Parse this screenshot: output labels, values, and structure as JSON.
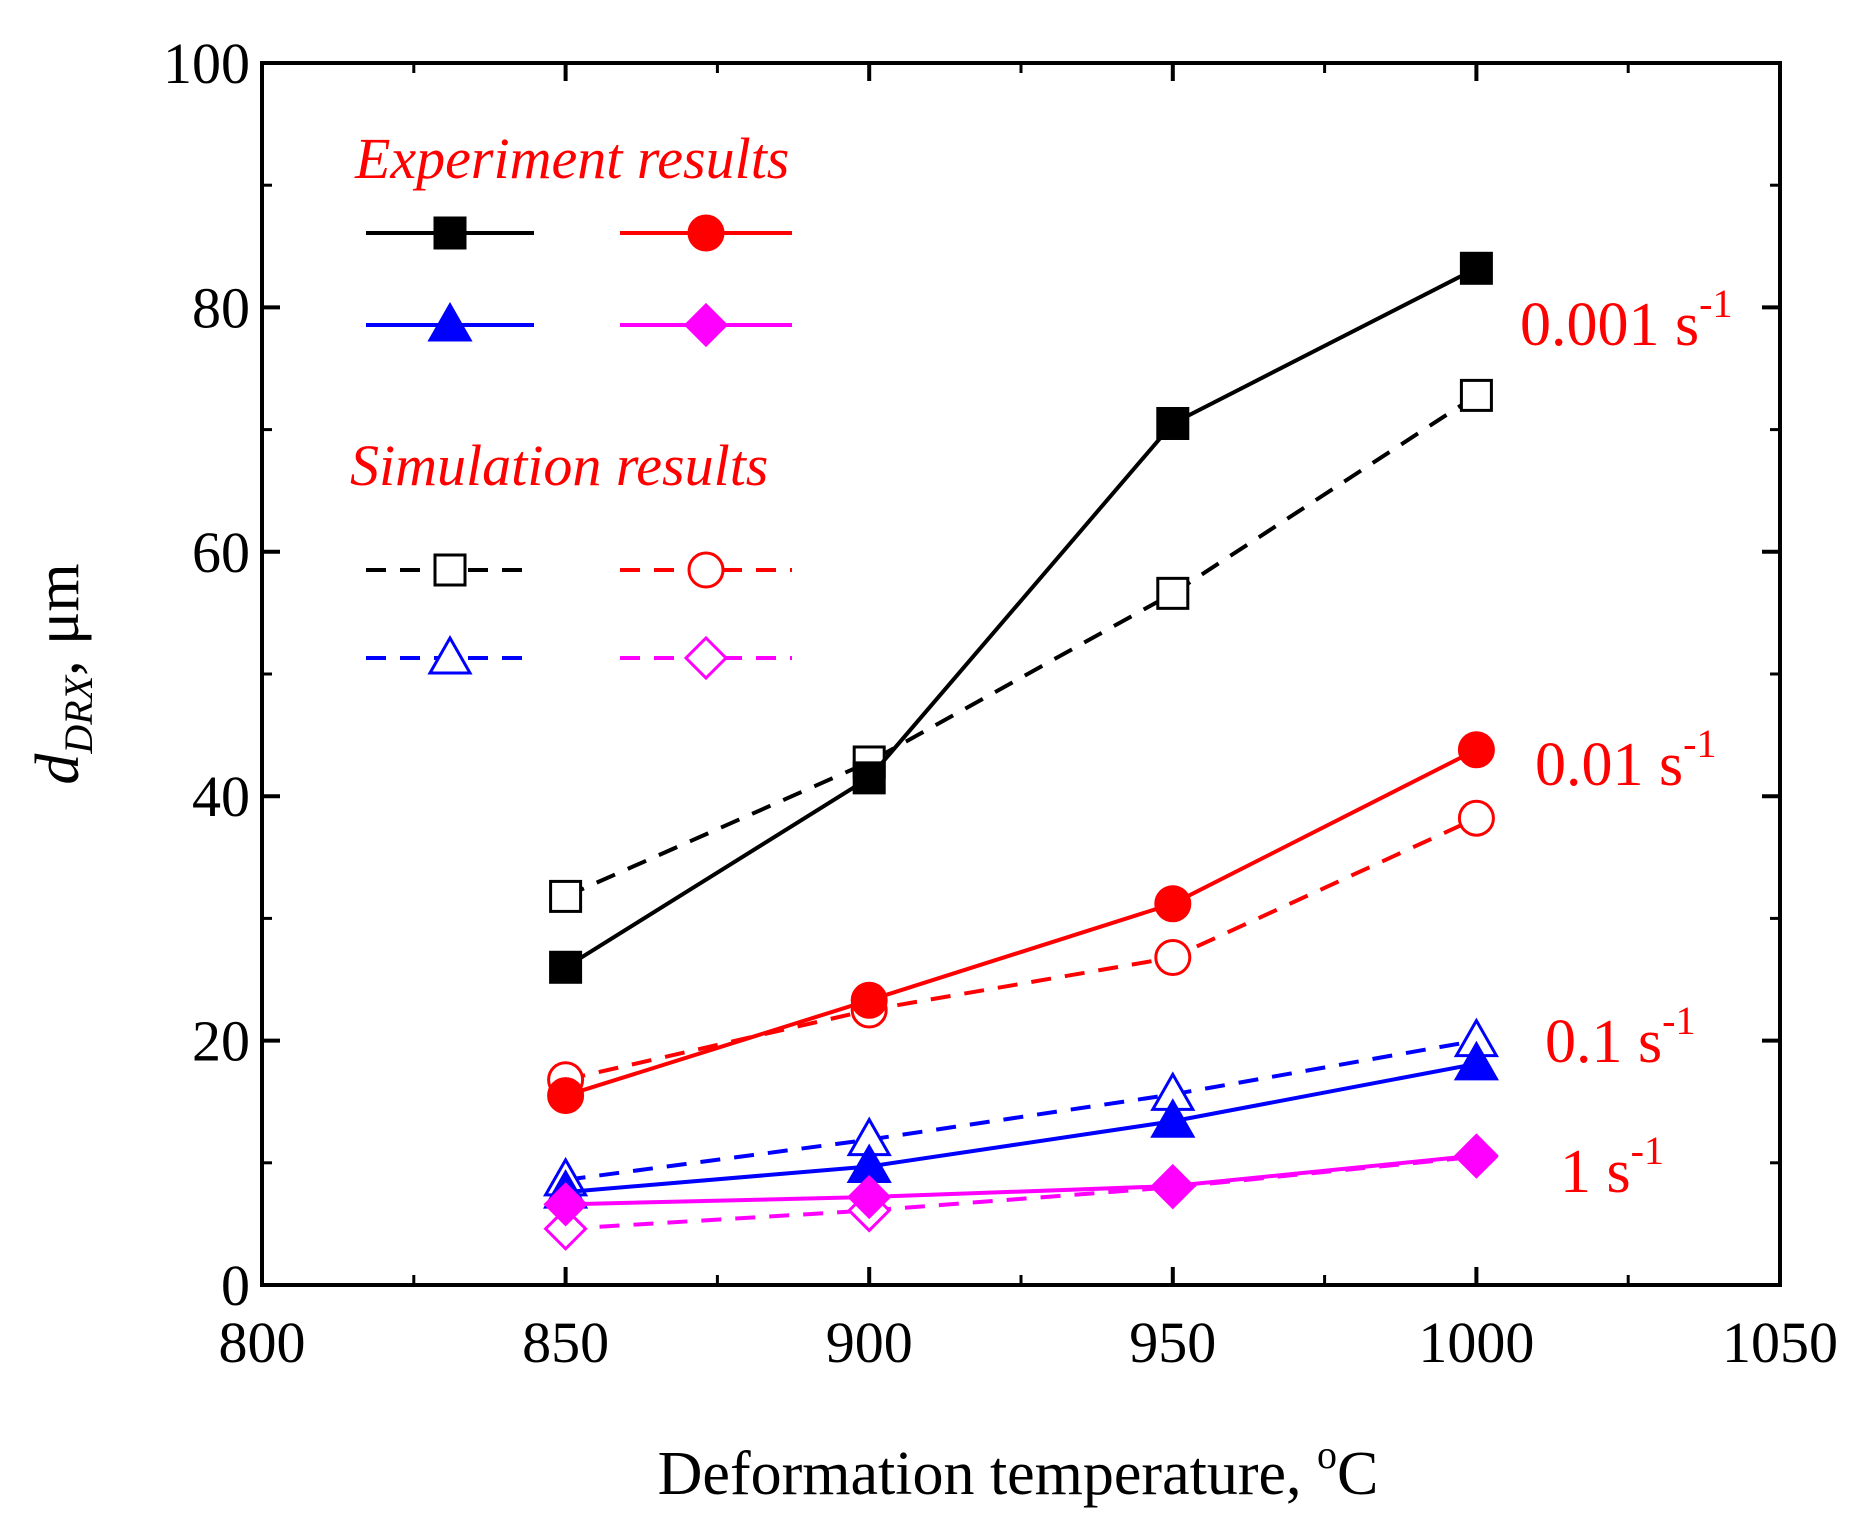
{
  "chart_data": {
    "type": "line",
    "xlabel": "Deformation temperature, ",
    "xlabel_sup": "o",
    "xlabel_unit": "C",
    "ylabel_main": "d",
    "ylabel_sub": "DRX",
    "ylabel_unit": ", μm",
    "xlim": [
      800,
      1050
    ],
    "ylim": [
      0,
      100
    ],
    "x_ticks": [
      800,
      850,
      900,
      950,
      1000,
      1050
    ],
    "y_ticks": [
      0,
      20,
      40,
      60,
      80,
      100
    ],
    "x": [
      850,
      900,
      950,
      1000
    ],
    "legend": {
      "experiment_title": "Experiment results",
      "simulation_title": "Simulation results",
      "title_color": "#ff0000",
      "placement": "top-left"
    },
    "rate_labels": [
      {
        "base": "0.001 s",
        "sup": "-1",
        "color": "#ff0000"
      },
      {
        "base": "0.01 s",
        "sup": "-1",
        "color": "#ff0000"
      },
      {
        "base": "0.1 s",
        "sup": "-1",
        "color": "#ff0000"
      },
      {
        "base": "1 s",
        "sup": "-1",
        "color": "#ff0000"
      }
    ],
    "series": [
      {
        "name": "Experiment 0.001 s-1",
        "group": "experiment",
        "color": "#000000",
        "marker": "square",
        "filled": true,
        "dashed": false,
        "values": [
          26,
          41.5,
          70.5,
          83.2
        ]
      },
      {
        "name": "Experiment 0.01 s-1",
        "group": "experiment",
        "color": "#ff0000",
        "marker": "circle",
        "filled": true,
        "dashed": false,
        "values": [
          15.5,
          23.3,
          31.2,
          43.8
        ]
      },
      {
        "name": "Experiment 0.1 s-1",
        "group": "experiment",
        "color": "#0000ff",
        "marker": "triangle",
        "filled": true,
        "dashed": false,
        "values": [
          7.6,
          9.7,
          13.4,
          18.1
        ]
      },
      {
        "name": "Experiment 1 s-1",
        "group": "experiment",
        "color": "#ff00ff",
        "marker": "diamond",
        "filled": true,
        "dashed": false,
        "values": [
          6.6,
          7.2,
          8.1,
          10.6
        ]
      },
      {
        "name": "Simulation 0.001 s-1",
        "group": "simulation",
        "color": "#000000",
        "marker": "square",
        "filled": false,
        "dashed": true,
        "values": [
          31.8,
          42.8,
          56.6,
          72.8
        ]
      },
      {
        "name": "Simulation 0.01 s-1",
        "group": "simulation",
        "color": "#ff0000",
        "marker": "circle",
        "filled": false,
        "dashed": true,
        "values": [
          16.8,
          22.5,
          26.8,
          38.2
        ]
      },
      {
        "name": "Simulation 0.1 s-1",
        "group": "simulation",
        "color": "#0000ff",
        "marker": "triangle",
        "filled": false,
        "dashed": true,
        "values": [
          8.6,
          11.9,
          15.6,
          20.0
        ]
      },
      {
        "name": "Simulation 1 s-1",
        "group": "simulation",
        "color": "#ff00ff",
        "marker": "diamond",
        "filled": false,
        "dashed": true,
        "values": [
          4.6,
          6.1,
          8.0,
          10.5
        ]
      }
    ]
  }
}
